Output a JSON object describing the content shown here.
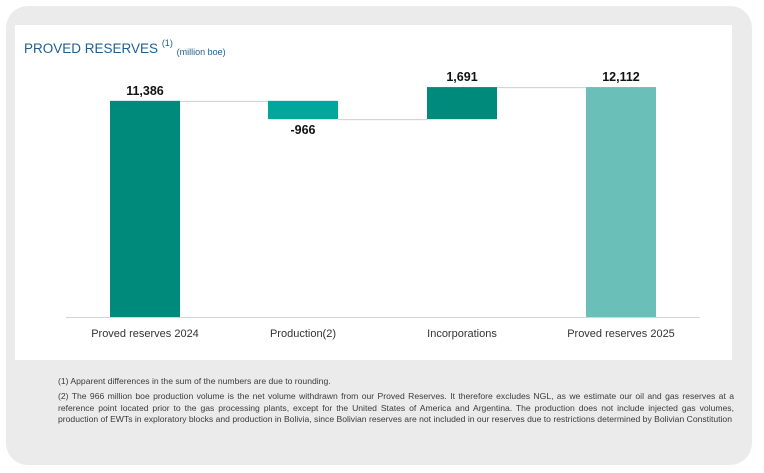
{
  "header": {
    "title": "PROVED RESERVES",
    "title_sup": "(1)",
    "unit": "(million boe)"
  },
  "chart_data": {
    "type": "waterfall",
    "title": "PROVED RESERVES (1)",
    "unit": "million boe",
    "categories": [
      "Proved reserves 2024",
      "Production(2)",
      "Incorporations",
      "Proved reserves 2025"
    ],
    "values": [
      11386,
      -966,
      1691,
      12112
    ],
    "labels": [
      "11,386",
      "-966",
      "1,691",
      "12,112"
    ],
    "kinds": [
      "total",
      "delta",
      "delta",
      "total"
    ],
    "ylim": [
      0,
      12800
    ],
    "grid": false,
    "colors": [
      "#008a7c",
      "#00a79a",
      "#008a7c",
      "#6ac0b8"
    ]
  },
  "notes": [
    "(1) Apparent differences in the sum of the numbers are due to rounding.",
    "(2) The 966 million boe production volume is the net volume withdrawn from our Proved Reserves. It therefore excludes NGL, as we estimate our oil and gas reserves at a reference point located prior to the gas processing plants, except for the United States of America and Argentina. The production does not include injected gas volumes, production of EWTs in exploratory blocks and production in Bolivia, since Bolivian reserves are not included in our reserves due to restrictions determined by Bolivian Constitution"
  ]
}
